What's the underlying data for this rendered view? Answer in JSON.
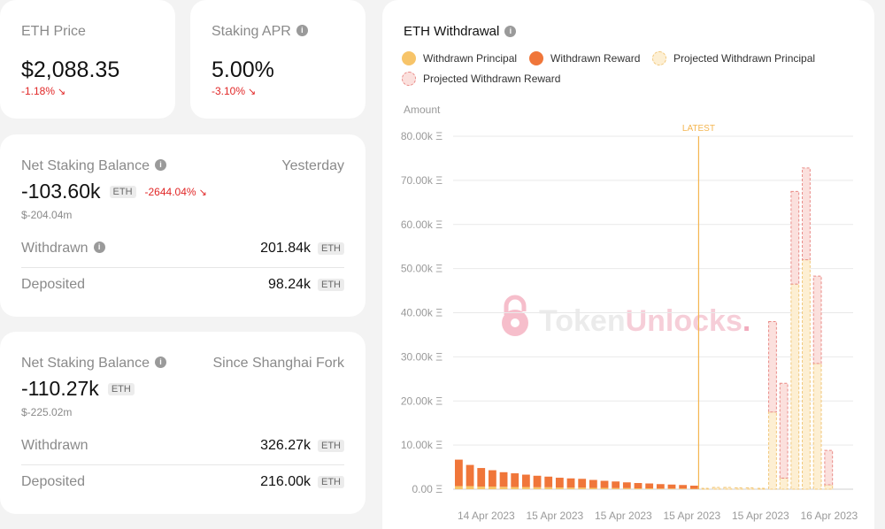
{
  "eth_price": {
    "label": "ETH Price",
    "value": "$2,088.35",
    "change": "-1.18%",
    "arrow": "↘"
  },
  "staking_apr": {
    "label": "Staking APR",
    "value": "5.00%",
    "change": "-3.10%",
    "arrow": "↘"
  },
  "net_yesterday": {
    "label": "Net Staking Balance",
    "period": "Yesterday",
    "value": "-103.60k",
    "unit": "ETH",
    "change": "-2644.04%",
    "arrow": "↘",
    "usd": "$-204.04m",
    "withdrawn_label": "Withdrawn",
    "withdrawn_value": "201.84k",
    "deposited_label": "Deposited",
    "deposited_value": "98.24k"
  },
  "net_shanghai": {
    "label": "Net Staking Balance",
    "period": "Since Shanghai Fork",
    "value": "-110.27k",
    "unit": "ETH",
    "usd": "$-225.02m",
    "withdrawn_label": "Withdrawn",
    "withdrawn_value": "326.27k",
    "deposited_label": "Deposited",
    "deposited_value": "216.00k"
  },
  "withdrawal_panel": {
    "title": "ETH Withdrawal",
    "legend": [
      "Withdrawn Principal",
      "Withdrawn Reward",
      "Projected Withdrawn Principal",
      "Projected Withdrawn Reward"
    ],
    "watermark_a": "Token",
    "watermark_b": "Unlocks",
    "watermark_dot": "."
  },
  "chart_data": {
    "type": "bar",
    "stacked": true,
    "title": "ETH Withdrawal",
    "ylabel": "Amount",
    "ylim": [
      0,
      80000
    ],
    "y_ticks": [
      "0.00 Ξ",
      "10.00k Ξ",
      "20.00k Ξ",
      "30.00k Ξ",
      "40.00k Ξ",
      "50.00k Ξ",
      "60.00k Ξ",
      "70.00k Ξ",
      "80.00k Ξ"
    ],
    "x_tick_labels": [
      "14 Apr 2023",
      "15 Apr 2023",
      "15 Apr 2023",
      "15 Apr 2023",
      "15 Apr 2023",
      "16 Apr 2023"
    ],
    "marker_label": "LATEST",
    "grid": true,
    "legend_position": "top",
    "colors": {
      "principal": "#f7c469",
      "reward": "#f0763a",
      "projected_principal_fill": "#fdefd3",
      "projected_principal_stroke": "#f1c77a",
      "projected_reward_fill": "#fbe0dd",
      "projected_reward_stroke": "#e98b87",
      "marker": "#f4b550"
    },
    "series": [
      {
        "name": "Withdrawn Principal",
        "values": [
          700,
          700,
          600,
          600,
          550,
          500,
          500,
          450,
          450,
          400,
          350,
          350,
          300,
          300,
          250,
          250,
          200,
          200,
          150,
          150,
          150,
          100,
          0,
          0,
          0,
          0,
          0,
          0,
          0,
          0,
          0,
          0,
          0,
          0,
          0,
          0
        ]
      },
      {
        "name": "Withdrawn Reward",
        "values": [
          6000,
          4800,
          4200,
          3700,
          3300,
          3100,
          2800,
          2600,
          2400,
          2200,
          2100,
          2000,
          1800,
          1600,
          1500,
          1300,
          1200,
          1100,
          1000,
          900,
          800,
          700,
          0,
          0,
          0,
          0,
          0,
          0,
          0,
          0,
          0,
          0,
          0,
          0,
          0,
          0
        ]
      },
      {
        "name": "Projected Withdrawn Principal",
        "values": [
          0,
          0,
          0,
          0,
          0,
          0,
          0,
          0,
          0,
          0,
          0,
          0,
          0,
          0,
          0,
          0,
          0,
          0,
          0,
          0,
          0,
          0,
          200,
          400,
          400,
          300,
          300,
          200,
          17500,
          2500,
          46500,
          52000,
          28500,
          1000,
          0,
          0
        ]
      },
      {
        "name": "Projected Withdrawn Reward",
        "values": [
          0,
          0,
          0,
          0,
          0,
          0,
          0,
          0,
          0,
          0,
          0,
          0,
          0,
          0,
          0,
          0,
          0,
          0,
          0,
          0,
          0,
          0,
          0,
          0,
          0,
          0,
          0,
          0,
          20500,
          21500,
          21000,
          20800,
          19800,
          7800,
          0,
          0
        ]
      }
    ]
  }
}
